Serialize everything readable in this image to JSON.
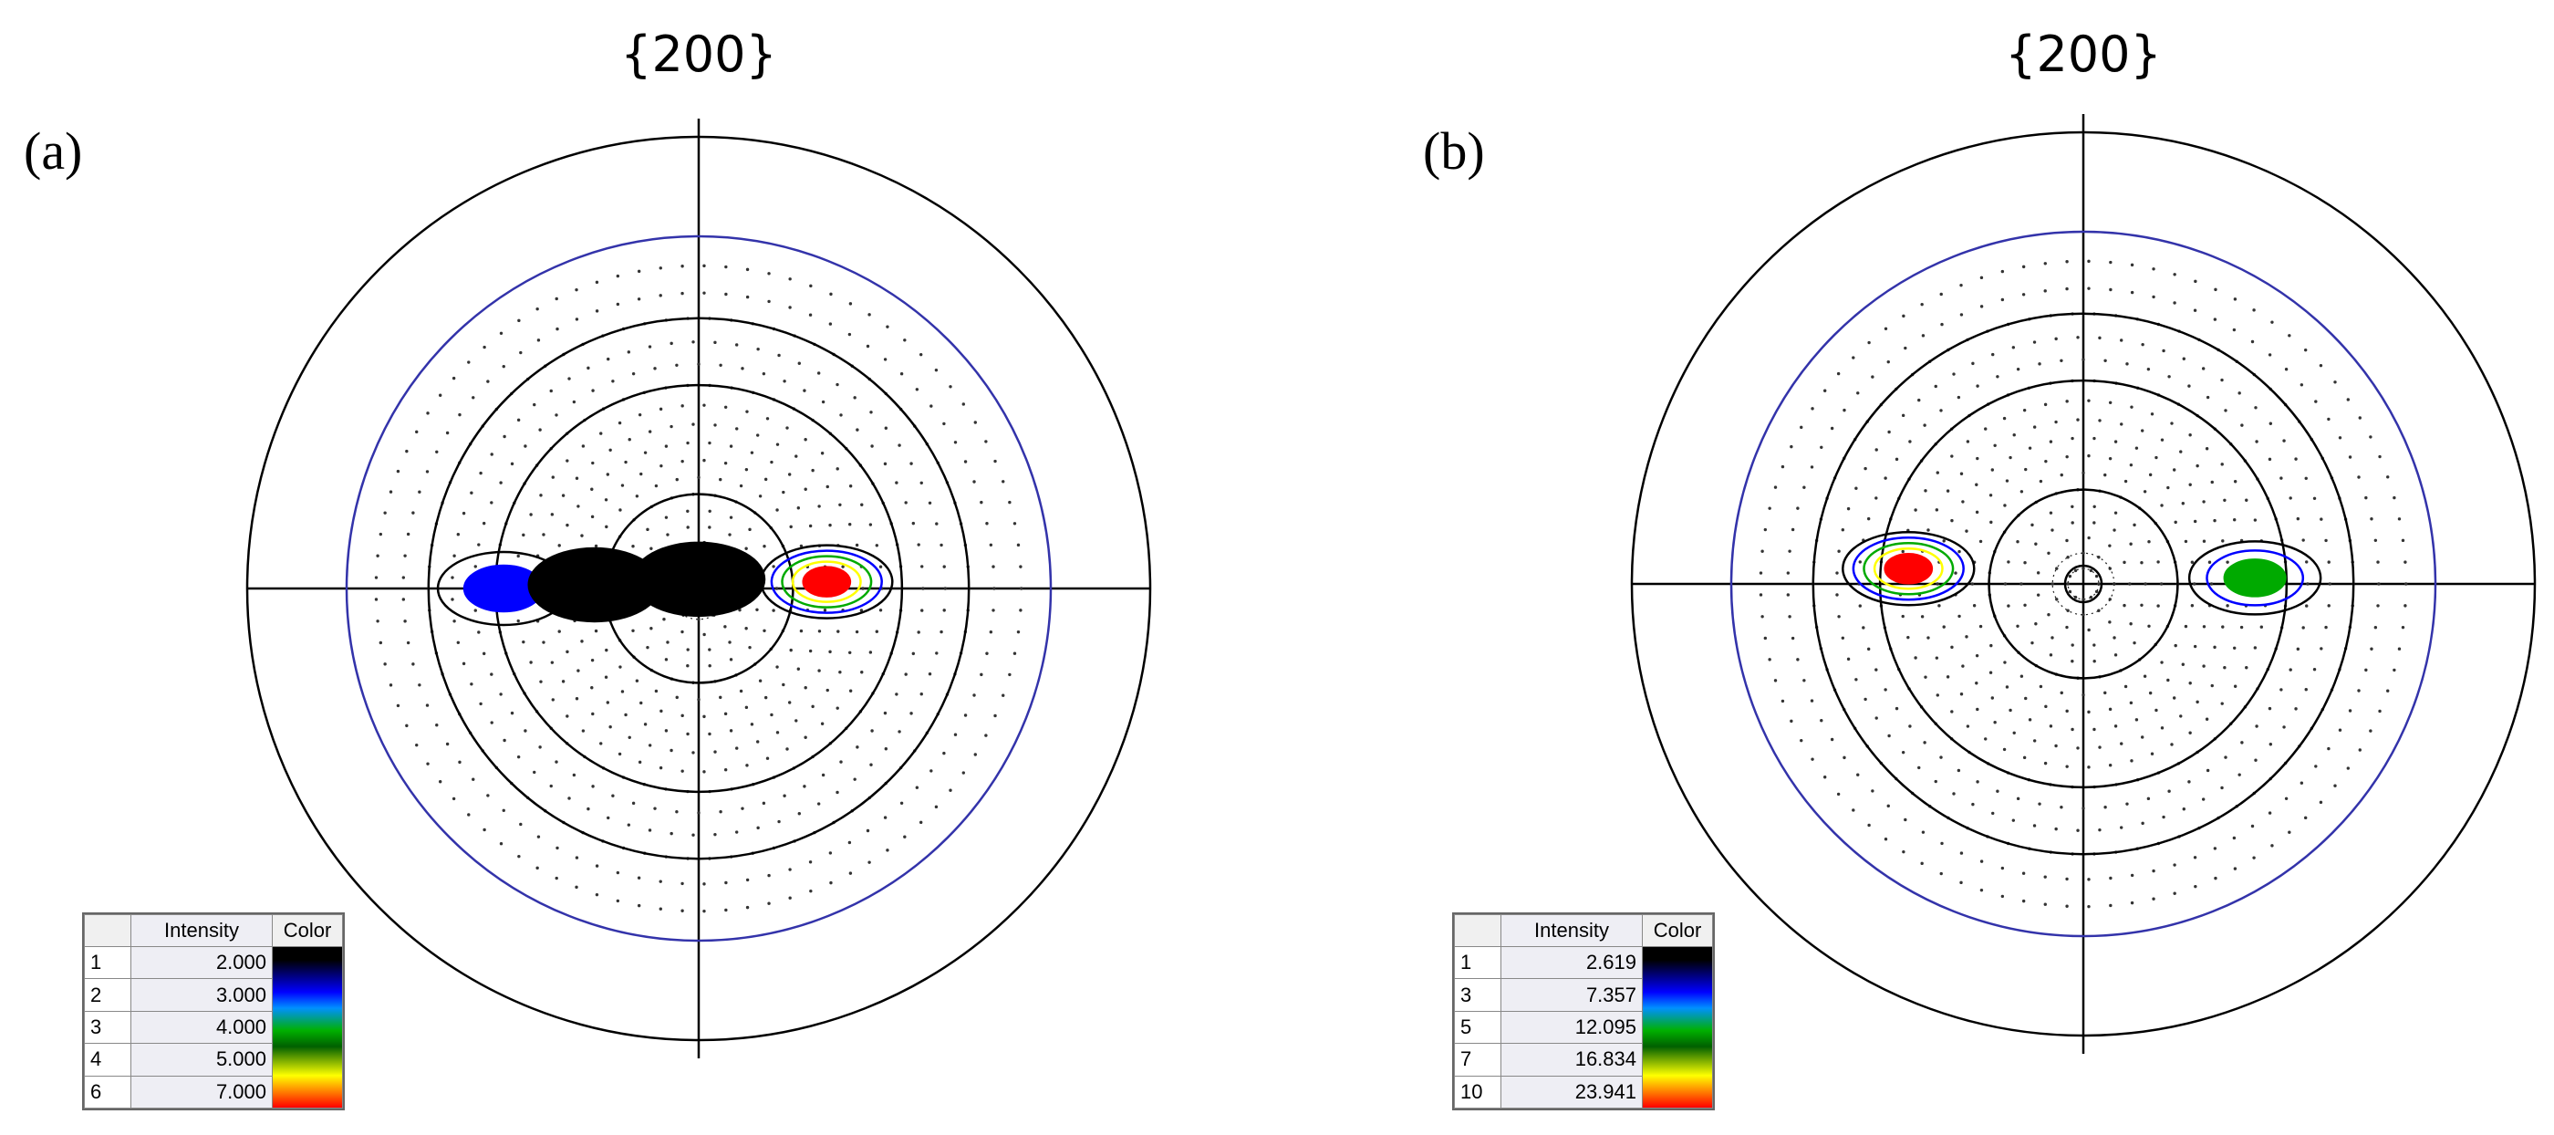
{
  "panels": [
    {
      "id": "a",
      "label": "(a)",
      "title": "{200}",
      "legend": {
        "headers": [
          "",
          "Intensity",
          "Color"
        ],
        "rows": [
          {
            "level": "1",
            "intensity": "2.000"
          },
          {
            "level": "2",
            "intensity": "3.000"
          },
          {
            "level": "3",
            "intensity": "4.000"
          },
          {
            "level": "4",
            "intensity": "5.000"
          },
          {
            "level": "6",
            "intensity": "7.000"
          }
        ]
      }
    },
    {
      "id": "b",
      "label": "(b)",
      "title": "{200}",
      "legend": {
        "headers": [
          "",
          "Intensity",
          "Color"
        ],
        "rows": [
          {
            "level": "1",
            "intensity": "2.619"
          },
          {
            "level": "3",
            "intensity": "7.357"
          },
          {
            "level": "5",
            "intensity": "12.095"
          },
          {
            "level": "7",
            "intensity": "16.834"
          },
          {
            "level": "10",
            "intensity": "23.941"
          }
        ]
      }
    }
  ],
  "chart_data": [
    {
      "type": "pole-figure",
      "title": "{200}",
      "panel_label": "(a)",
      "projection": "stereographic",
      "tilt_circles_deg": [
        30,
        60,
        75,
        90
      ],
      "intensity_levels": [
        2.0,
        3.0,
        4.0,
        5.0,
        7.0
      ],
      "colormap": [
        "#000000",
        "#0000ff",
        "#00aa00",
        "#ffff00",
        "#ff0000"
      ],
      "peaks": [
        {
          "azimuth_deg": 3,
          "tilt_deg": 40,
          "max_level": 7.0
        },
        {
          "azimuth_deg": 180,
          "tilt_deg": 58,
          "max_level": 3.0
        },
        {
          "azimuth_deg": 178,
          "tilt_deg": 33,
          "max_level": 2.0
        },
        {
          "azimuth_deg": 90,
          "tilt_deg": 3,
          "max_level": 2.0
        }
      ]
    },
    {
      "type": "pole-figure",
      "title": "{200}",
      "panel_label": "(b)",
      "projection": "stereographic",
      "tilt_circles_deg": [
        30,
        60,
        75,
        90
      ],
      "intensity_levels": [
        2.619,
        7.357,
        12.095,
        16.834,
        23.941
      ],
      "colormap": [
        "#000000",
        "#0000ff",
        "#00aa00",
        "#ffff00",
        "#ff0000"
      ],
      "peaks": [
        {
          "azimuth_deg": 175,
          "tilt_deg": 53,
          "max_level": 23.941
        },
        {
          "azimuth_deg": 2,
          "tilt_deg": 52,
          "max_level": 12.095
        }
      ]
    }
  ]
}
